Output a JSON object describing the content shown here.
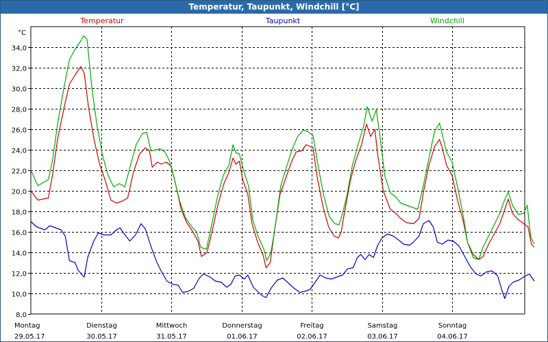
{
  "title": "Temperatur, Taupunkt, Windchill [°C]",
  "chart_data": {
    "type": "line",
    "ylabel": "°C",
    "ylim": [
      8,
      36
    ],
    "grid": true,
    "yticks": [
      8,
      10,
      12,
      14,
      16,
      18,
      20,
      22,
      24,
      26,
      28,
      30,
      32,
      34
    ],
    "ytick_labels": [
      "8,0",
      "10,0",
      "12,0",
      "14,0",
      "16,0",
      "18,0",
      "20,0",
      "22,0",
      "24,0",
      "26,0",
      "28,0",
      "30,0",
      "32,0",
      "34,0"
    ],
    "x_unit": "days since Montag 29.05.17 00:00",
    "xlim": [
      0,
      7.17
    ],
    "days": [
      {
        "day": "Montag",
        "date": "29.05.17"
      },
      {
        "day": "Dienstag",
        "date": "30.05.17"
      },
      {
        "day": "Mittwoch",
        "date": "31.05.17"
      },
      {
        "day": "Donnerstag",
        "date": "01.06.17"
      },
      {
        "day": "Freitag",
        "date": "02.06.17"
      },
      {
        "day": "Samstag",
        "date": "03.06.17"
      },
      {
        "day": "Sonntag",
        "date": "04.06.17"
      }
    ],
    "series": [
      {
        "name": "Temperatur",
        "color": "#cc0000",
        "points": [
          [
            0,
            20.0
          ],
          [
            0.1,
            19.1
          ],
          [
            0.25,
            19.3
          ],
          [
            0.31,
            21.6
          ],
          [
            0.38,
            25.0
          ],
          [
            0.47,
            28.0
          ],
          [
            0.55,
            30.4
          ],
          [
            0.63,
            31.3
          ],
          [
            0.71,
            32.1
          ],
          [
            0.76,
            31.5
          ],
          [
            0.82,
            28.2
          ],
          [
            0.9,
            25.0
          ],
          [
            0.98,
            22.6
          ],
          [
            1.06,
            21.0
          ],
          [
            1.14,
            19.1
          ],
          [
            1.22,
            18.8
          ],
          [
            1.3,
            19.0
          ],
          [
            1.38,
            19.3
          ],
          [
            1.46,
            21.8
          ],
          [
            1.55,
            23.6
          ],
          [
            1.63,
            24.2
          ],
          [
            1.69,
            23.9
          ],
          [
            1.73,
            22.3
          ],
          [
            1.8,
            22.8
          ],
          [
            1.86,
            22.6
          ],
          [
            1.93,
            22.8
          ],
          [
            2.0,
            22.4
          ],
          [
            2.06,
            20.7
          ],
          [
            2.14,
            18.2
          ],
          [
            2.22,
            16.9
          ],
          [
            2.3,
            16.1
          ],
          [
            2.38,
            15.1
          ],
          [
            2.43,
            13.6
          ],
          [
            2.51,
            14.0
          ],
          [
            2.59,
            16.3
          ],
          [
            2.67,
            18.8
          ],
          [
            2.75,
            20.7
          ],
          [
            2.82,
            21.8
          ],
          [
            2.88,
            23.2
          ],
          [
            2.92,
            22.6
          ],
          [
            2.97,
            22.9
          ],
          [
            3.02,
            21.0
          ],
          [
            3.09,
            19.7
          ],
          [
            3.15,
            16.8
          ],
          [
            3.23,
            15.0
          ],
          [
            3.31,
            13.7
          ],
          [
            3.35,
            12.5
          ],
          [
            3.41,
            13.0
          ],
          [
            3.47,
            16.1
          ],
          [
            3.55,
            19.7
          ],
          [
            3.63,
            21.2
          ],
          [
            3.71,
            22.8
          ],
          [
            3.78,
            23.8
          ],
          [
            3.86,
            23.9
          ],
          [
            3.92,
            24.5
          ],
          [
            4.02,
            24.2
          ],
          [
            4.08,
            21.3
          ],
          [
            4.16,
            18.5
          ],
          [
            4.24,
            16.5
          ],
          [
            4.32,
            15.6
          ],
          [
            4.38,
            15.4
          ],
          [
            4.42,
            16.0
          ],
          [
            4.47,
            18.0
          ],
          [
            4.55,
            21.0
          ],
          [
            4.63,
            23.0
          ],
          [
            4.71,
            24.5
          ],
          [
            4.78,
            26.5
          ],
          [
            4.84,
            25.3
          ],
          [
            4.9,
            26.0
          ],
          [
            4.94,
            23.5
          ],
          [
            5.02,
            20.0
          ],
          [
            5.12,
            18.2
          ],
          [
            5.2,
            17.8
          ],
          [
            5.27,
            17.3
          ],
          [
            5.35,
            16.9
          ],
          [
            5.45,
            16.8
          ],
          [
            5.53,
            17.3
          ],
          [
            5.59,
            19.8
          ],
          [
            5.67,
            22.5
          ],
          [
            5.75,
            24.3
          ],
          [
            5.82,
            25.0
          ],
          [
            5.86,
            24.2
          ],
          [
            5.92,
            22.5
          ],
          [
            6.0,
            21.5
          ],
          [
            6.08,
            19.0
          ],
          [
            6.16,
            17.0
          ],
          [
            6.22,
            15.0
          ],
          [
            6.3,
            13.8
          ],
          [
            6.38,
            13.3
          ],
          [
            6.44,
            13.6
          ],
          [
            6.52,
            14.8
          ],
          [
            6.6,
            15.8
          ],
          [
            6.68,
            16.8
          ],
          [
            6.74,
            18.0
          ],
          [
            6.8,
            19.2
          ],
          [
            6.86,
            17.8
          ],
          [
            6.94,
            17.2
          ],
          [
            7.02,
            16.8
          ],
          [
            7.08,
            16.5
          ],
          [
            7.13,
            14.8
          ],
          [
            7.17,
            14.5
          ]
        ]
      },
      {
        "name": "Taupunkt",
        "color": "#0000cc",
        "points": [
          [
            0,
            17.0
          ],
          [
            0.08,
            16.5
          ],
          [
            0.2,
            16.2
          ],
          [
            0.27,
            16.6
          ],
          [
            0.35,
            16.4
          ],
          [
            0.43,
            16.2
          ],
          [
            0.49,
            15.6
          ],
          [
            0.55,
            13.2
          ],
          [
            0.63,
            13.0
          ],
          [
            0.67,
            12.3
          ],
          [
            0.73,
            11.8
          ],
          [
            0.76,
            11.6
          ],
          [
            0.81,
            13.5
          ],
          [
            0.89,
            15.0
          ],
          [
            0.96,
            15.9
          ],
          [
            1.04,
            15.7
          ],
          [
            1.14,
            15.7
          ],
          [
            1.22,
            16.2
          ],
          [
            1.27,
            16.4
          ],
          [
            1.33,
            15.8
          ],
          [
            1.41,
            15.1
          ],
          [
            1.49,
            15.7
          ],
          [
            1.57,
            16.8
          ],
          [
            1.63,
            16.3
          ],
          [
            1.71,
            14.6
          ],
          [
            1.79,
            13.1
          ],
          [
            1.87,
            12.0
          ],
          [
            1.94,
            11.2
          ],
          [
            2.02,
            10.9
          ],
          [
            2.1,
            10.8
          ],
          [
            2.16,
            10.1
          ],
          [
            2.24,
            10.2
          ],
          [
            2.32,
            10.5
          ],
          [
            2.4,
            11.5
          ],
          [
            2.46,
            11.9
          ],
          [
            2.55,
            11.6
          ],
          [
            2.63,
            11.2
          ],
          [
            2.71,
            11.1
          ],
          [
            2.79,
            10.6
          ],
          [
            2.85,
            10.9
          ],
          [
            2.91,
            11.7
          ],
          [
            2.97,
            11.8
          ],
          [
            3.04,
            11.4
          ],
          [
            3.09,
            11.8
          ],
          [
            3.17,
            10.6
          ],
          [
            3.23,
            10.2
          ],
          [
            3.29,
            9.8
          ],
          [
            3.35,
            9.6
          ],
          [
            3.43,
            10.6
          ],
          [
            3.51,
            11.3
          ],
          [
            3.59,
            11.5
          ],
          [
            3.67,
            11.0
          ],
          [
            3.75,
            10.5
          ],
          [
            3.83,
            10.1
          ],
          [
            3.9,
            10.2
          ],
          [
            3.98,
            10.4
          ],
          [
            4.06,
            11.2
          ],
          [
            4.12,
            11.8
          ],
          [
            4.2,
            11.5
          ],
          [
            4.28,
            11.4
          ],
          [
            4.36,
            11.6
          ],
          [
            4.44,
            11.8
          ],
          [
            4.51,
            12.4
          ],
          [
            4.59,
            12.5
          ],
          [
            4.65,
            13.5
          ],
          [
            4.7,
            13.8
          ],
          [
            4.76,
            13.3
          ],
          [
            4.82,
            13.8
          ],
          [
            4.88,
            13.5
          ],
          [
            4.94,
            14.7
          ],
          [
            5.0,
            15.4
          ],
          [
            5.08,
            15.8
          ],
          [
            5.16,
            15.6
          ],
          [
            5.24,
            15.2
          ],
          [
            5.31,
            14.8
          ],
          [
            5.39,
            14.7
          ],
          [
            5.45,
            15.0
          ],
          [
            5.53,
            15.6
          ],
          [
            5.59,
            16.8
          ],
          [
            5.67,
            17.1
          ],
          [
            5.73,
            16.5
          ],
          [
            5.79,
            15.0
          ],
          [
            5.86,
            14.8
          ],
          [
            5.94,
            15.2
          ],
          [
            6.02,
            15.1
          ],
          [
            6.1,
            14.6
          ],
          [
            6.18,
            13.6
          ],
          [
            6.26,
            12.6
          ],
          [
            6.34,
            11.9
          ],
          [
            6.41,
            11.7
          ],
          [
            6.49,
            12.1
          ],
          [
            6.57,
            12.2
          ],
          [
            6.65,
            11.7
          ],
          [
            6.71,
            10.3
          ],
          [
            6.75,
            9.5
          ],
          [
            6.81,
            10.7
          ],
          [
            6.87,
            11.1
          ],
          [
            6.95,
            11.3
          ],
          [
            7.02,
            11.6
          ],
          [
            7.1,
            11.9
          ],
          [
            7.17,
            11.2
          ]
        ]
      },
      {
        "name": "Windchill",
        "color": "#00aa00",
        "points": [
          [
            0,
            22.0
          ],
          [
            0.1,
            20.5
          ],
          [
            0.25,
            21.1
          ],
          [
            0.31,
            23.0
          ],
          [
            0.38,
            26.5
          ],
          [
            0.47,
            30.0
          ],
          [
            0.55,
            32.8
          ],
          [
            0.63,
            33.8
          ],
          [
            0.71,
            34.6
          ],
          [
            0.75,
            35.1
          ],
          [
            0.8,
            34.8
          ],
          [
            0.87,
            30.0
          ],
          [
            0.94,
            26.5
          ],
          [
            1.02,
            23.5
          ],
          [
            1.1,
            21.5
          ],
          [
            1.18,
            20.4
          ],
          [
            1.26,
            20.7
          ],
          [
            1.34,
            20.4
          ],
          [
            1.42,
            22.5
          ],
          [
            1.5,
            24.5
          ],
          [
            1.59,
            25.6
          ],
          [
            1.65,
            25.7
          ],
          [
            1.71,
            23.9
          ],
          [
            1.78,
            24.0
          ],
          [
            1.84,
            24.1
          ],
          [
            1.91,
            23.8
          ],
          [
            1.97,
            23.0
          ],
          [
            2.04,
            21.3
          ],
          [
            2.12,
            19.0
          ],
          [
            2.2,
            17.4
          ],
          [
            2.28,
            16.6
          ],
          [
            2.36,
            16.0
          ],
          [
            2.42,
            14.5
          ],
          [
            2.5,
            14.3
          ],
          [
            2.58,
            16.8
          ],
          [
            2.66,
            19.5
          ],
          [
            2.74,
            21.5
          ],
          [
            2.82,
            22.5
          ],
          [
            2.88,
            24.5
          ],
          [
            2.92,
            23.7
          ],
          [
            2.97,
            23.6
          ],
          [
            3.03,
            22.0
          ],
          [
            3.1,
            20.5
          ],
          [
            3.16,
            17.2
          ],
          [
            3.24,
            15.5
          ],
          [
            3.32,
            14.3
          ],
          [
            3.36,
            13.2
          ],
          [
            3.42,
            14.0
          ],
          [
            3.48,
            16.5
          ],
          [
            3.56,
            20.5
          ],
          [
            3.64,
            22.3
          ],
          [
            3.72,
            24.0
          ],
          [
            3.8,
            25.3
          ],
          [
            3.88,
            25.9
          ],
          [
            3.94,
            25.8
          ],
          [
            4.02,
            25.4
          ],
          [
            4.09,
            22.5
          ],
          [
            4.17,
            19.6
          ],
          [
            4.25,
            17.5
          ],
          [
            4.33,
            16.8
          ],
          [
            4.39,
            16.7
          ],
          [
            4.44,
            17.8
          ],
          [
            4.5,
            19.5
          ],
          [
            4.58,
            22.5
          ],
          [
            4.66,
            24.5
          ],
          [
            4.74,
            26.3
          ],
          [
            4.79,
            28.2
          ],
          [
            4.86,
            26.8
          ],
          [
            4.92,
            27.9
          ],
          [
            4.97,
            25.5
          ],
          [
            5.04,
            21.5
          ],
          [
            5.12,
            19.8
          ],
          [
            5.2,
            19.4
          ],
          [
            5.27,
            18.8
          ],
          [
            5.35,
            18.6
          ],
          [
            5.43,
            18.4
          ],
          [
            5.51,
            18.2
          ],
          [
            5.59,
            20.5
          ],
          [
            5.67,
            23.2
          ],
          [
            5.75,
            25.8
          ],
          [
            5.82,
            26.6
          ],
          [
            5.86,
            25.5
          ],
          [
            5.92,
            23.8
          ],
          [
            6.0,
            22.8
          ],
          [
            6.08,
            20.3
          ],
          [
            6.16,
            17.5
          ],
          [
            6.22,
            15.0
          ],
          [
            6.3,
            13.5
          ],
          [
            6.38,
            13.3
          ],
          [
            6.44,
            14.5
          ],
          [
            6.52,
            15.6
          ],
          [
            6.6,
            16.7
          ],
          [
            6.68,
            17.8
          ],
          [
            6.74,
            19.0
          ],
          [
            6.8,
            19.9
          ],
          [
            6.86,
            18.6
          ],
          [
            6.94,
            17.7
          ],
          [
            7.02,
            17.8
          ],
          [
            7.07,
            18.6
          ],
          [
            7.12,
            15.5
          ],
          [
            7.17,
            14.8
          ]
        ]
      }
    ]
  }
}
